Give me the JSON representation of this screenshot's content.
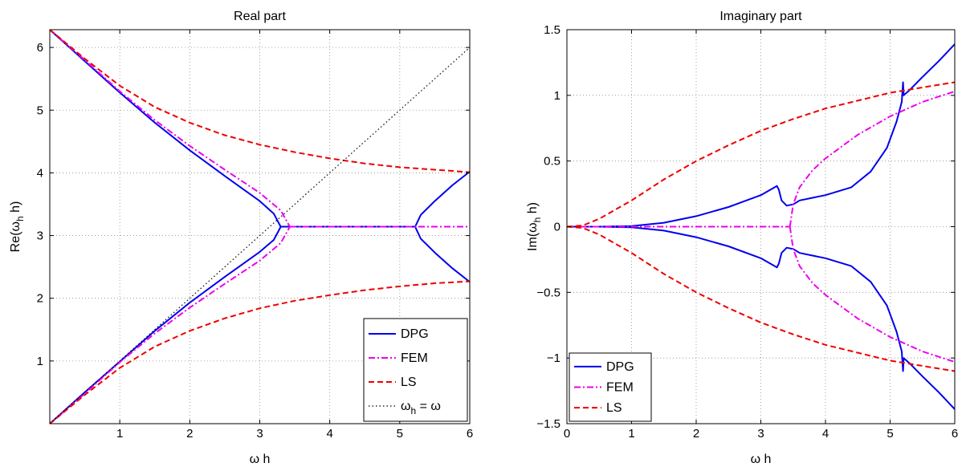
{
  "chart_data": [
    {
      "type": "line",
      "title": "Real part",
      "xlabel": "ω h",
      "ylabel": "Re(ω_h h)",
      "xlim": [
        0,
        6
      ],
      "ylim": [
        0,
        6.2832
      ],
      "xticks": [
        1,
        2,
        3,
        4,
        5,
        6
      ],
      "xtick_labels": [
        "1",
        "2",
        "3",
        "4",
        "5",
        "6"
      ],
      "yticks": [
        1,
        2,
        3,
        4,
        5,
        6
      ],
      "ytick_labels": [
        "1",
        "2",
        "3",
        "4",
        "5",
        "6"
      ],
      "grid": true,
      "legend_position": "bottom-right",
      "series": [
        {
          "name": "DPG",
          "color": "#0000ee",
          "style": "solid",
          "segments": [
            [
              [
                0,
                6.2832
              ],
              [
                0.5,
                5.78
              ],
              [
                1,
                5.28
              ],
              [
                1.5,
                4.8
              ],
              [
                2,
                4.36
              ],
              [
                2.5,
                3.95
              ],
              [
                3,
                3.55
              ],
              [
                3.2,
                3.35
              ],
              [
                3.3,
                3.14
              ]
            ],
            [
              [
                0,
                0
              ],
              [
                0.5,
                0.5
              ],
              [
                1,
                0.99
              ],
              [
                1.5,
                1.48
              ],
              [
                2,
                1.93
              ],
              [
                2.5,
                2.34
              ],
              [
                3,
                2.74
              ],
              [
                3.2,
                2.93
              ],
              [
                3.3,
                3.14
              ]
            ],
            [
              [
                3.3,
                3.1416
              ],
              [
                5.22,
                3.1416
              ]
            ],
            [
              [
                5.22,
                3.14
              ],
              [
                5.3,
                3.33
              ],
              [
                5.5,
                3.55
              ],
              [
                5.75,
                3.8
              ],
              [
                6,
                4.02
              ]
            ],
            [
              [
                5.22,
                3.14
              ],
              [
                5.3,
                2.95
              ],
              [
                5.5,
                2.73
              ],
              [
                5.75,
                2.48
              ],
              [
                6,
                2.26
              ]
            ]
          ]
        },
        {
          "name": "FEM",
          "color": "#ee00ee",
          "style": "dashdot",
          "segments": [
            [
              [
                0,
                6.2832
              ],
              [
                0.5,
                5.8
              ],
              [
                1,
                5.3
              ],
              [
                1.5,
                4.84
              ],
              [
                2,
                4.43
              ],
              [
                2.5,
                4.05
              ],
              [
                3,
                3.68
              ],
              [
                3.3,
                3.4
              ],
              [
                3.43,
                3.14
              ]
            ],
            [
              [
                0,
                0
              ],
              [
                0.5,
                0.48
              ],
              [
                1,
                0.98
              ],
              [
                1.5,
                1.44
              ],
              [
                2,
                1.85
              ],
              [
                2.5,
                2.23
              ],
              [
                3,
                2.6
              ],
              [
                3.3,
                2.88
              ],
              [
                3.43,
                3.14
              ]
            ],
            [
              [
                3.43,
                3.1416
              ],
              [
                6,
                3.1416
              ]
            ]
          ]
        },
        {
          "name": "LS",
          "color": "#ee0000",
          "style": "dashed",
          "segments": [
            [
              [
                0,
                6.2832
              ],
              [
                0.5,
                5.82
              ],
              [
                1,
                5.39
              ],
              [
                1.5,
                5.05
              ],
              [
                2,
                4.8
              ],
              [
                2.5,
                4.6
              ],
              [
                3,
                4.45
              ],
              [
                3.5,
                4.33
              ],
              [
                4,
                4.23
              ],
              [
                4.5,
                4.15
              ],
              [
                5,
                4.09
              ],
              [
                5.5,
                4.05
              ],
              [
                6,
                4.01
              ]
            ],
            [
              [
                0,
                0
              ],
              [
                0.5,
                0.46
              ],
              [
                1,
                0.89
              ],
              [
                1.5,
                1.23
              ],
              [
                2,
                1.48
              ],
              [
                2.5,
                1.68
              ],
              [
                3,
                1.84
              ],
              [
                3.5,
                1.96
              ],
              [
                4,
                2.05
              ],
              [
                4.5,
                2.13
              ],
              [
                5,
                2.19
              ],
              [
                5.5,
                2.24
              ],
              [
                6,
                2.27
              ]
            ]
          ]
        },
        {
          "name": "ω_h = ω",
          "color": "#000000",
          "style": "dotted",
          "segments": [
            [
              [
                0,
                0
              ],
              [
                6,
                6
              ]
            ]
          ]
        }
      ]
    },
    {
      "type": "line",
      "title": "Imaginary part",
      "xlabel": "ω h",
      "ylabel": "Im(ω_h h)",
      "xlim": [
        0,
        6
      ],
      "ylim": [
        -1.5,
        1.5
      ],
      "xticks": [
        0,
        1,
        2,
        3,
        4,
        5,
        6
      ],
      "xtick_labels": [
        "0",
        "1",
        "2",
        "3",
        "4",
        "5",
        "6"
      ],
      "yticks": [
        -1.5,
        -1,
        -0.5,
        0,
        0.5,
        1,
        1.5
      ],
      "ytick_labels": [
        "−1.5",
        "−1",
        "−0.5",
        "0",
        "0.5",
        "1",
        "1.5"
      ],
      "grid": true,
      "legend_position": "bottom-left",
      "series": [
        {
          "name": "DPG",
          "color": "#0000ee",
          "style": "solid",
          "segments": [
            [
              [
                0,
                0
              ],
              [
                0.5,
                0
              ],
              [
                1,
                0.005
              ],
              [
                1.5,
                0.03
              ],
              [
                2,
                0.08
              ],
              [
                2.5,
                0.15
              ],
              [
                3,
                0.24
              ],
              [
                3.25,
                0.31
              ],
              [
                3.28,
                0.28
              ],
              [
                3.32,
                0.2
              ],
              [
                3.4,
                0.16
              ],
              [
                3.5,
                0.17
              ],
              [
                3.6,
                0.2
              ],
              [
                4,
                0.24
              ],
              [
                4.4,
                0.3
              ],
              [
                4.7,
                0.42
              ],
              [
                4.95,
                0.6
              ],
              [
                5.1,
                0.8
              ],
              [
                5.18,
                0.95
              ],
              [
                5.2,
                1.1
              ],
              [
                5.21,
                1.0
              ],
              [
                5.3,
                1.04
              ],
              [
                5.5,
                1.14
              ],
              [
                5.75,
                1.26
              ],
              [
                6,
                1.39
              ]
            ],
            [
              [
                0,
                0
              ],
              [
                0.5,
                0
              ],
              [
                1,
                -0.005
              ],
              [
                1.5,
                -0.03
              ],
              [
                2,
                -0.08
              ],
              [
                2.5,
                -0.15
              ],
              [
                3,
                -0.24
              ],
              [
                3.25,
                -0.31
              ],
              [
                3.28,
                -0.28
              ],
              [
                3.32,
                -0.2
              ],
              [
                3.4,
                -0.16
              ],
              [
                3.5,
                -0.17
              ],
              [
                3.6,
                -0.2
              ],
              [
                4,
                -0.24
              ],
              [
                4.4,
                -0.3
              ],
              [
                4.7,
                -0.42
              ],
              [
                4.95,
                -0.6
              ],
              [
                5.1,
                -0.8
              ],
              [
                5.18,
                -0.95
              ],
              [
                5.2,
                -1.1
              ],
              [
                5.21,
                -1.0
              ],
              [
                5.3,
                -1.04
              ],
              [
                5.5,
                -1.14
              ],
              [
                5.75,
                -1.26
              ],
              [
                6,
                -1.39
              ]
            ]
          ]
        },
        {
          "name": "FEM",
          "color": "#ee00ee",
          "style": "dashdot",
          "segments": [
            [
              [
                0,
                0
              ],
              [
                3.45,
                0
              ]
            ],
            [
              [
                3.45,
                0
              ],
              [
                3.5,
                0.17
              ],
              [
                3.6,
                0.3
              ],
              [
                3.8,
                0.43
              ],
              [
                4,
                0.52
              ],
              [
                4.5,
                0.7
              ],
              [
                5,
                0.84
              ],
              [
                5.5,
                0.95
              ],
              [
                6,
                1.03
              ]
            ],
            [
              [
                3.45,
                0
              ],
              [
                3.5,
                -0.17
              ],
              [
                3.6,
                -0.3
              ],
              [
                3.8,
                -0.43
              ],
              [
                4,
                -0.52
              ],
              [
                4.5,
                -0.7
              ],
              [
                5,
                -0.84
              ],
              [
                5.5,
                -0.95
              ],
              [
                6,
                -1.03
              ]
            ]
          ]
        },
        {
          "name": "LS",
          "color": "#ee0000",
          "style": "dashed",
          "segments": [
            [
              [
                0,
                0
              ],
              [
                0.25,
                0.01
              ],
              [
                0.5,
                0.06
              ],
              [
                1,
                0.2
              ],
              [
                1.5,
                0.36
              ],
              [
                2,
                0.5
              ],
              [
                2.5,
                0.62
              ],
              [
                3,
                0.73
              ],
              [
                3.5,
                0.82
              ],
              [
                4,
                0.9
              ],
              [
                4.5,
                0.96
              ],
              [
                5,
                1.02
              ],
              [
                5.5,
                1.06
              ],
              [
                6,
                1.1
              ]
            ],
            [
              [
                0,
                0
              ],
              [
                0.25,
                -0.01
              ],
              [
                0.5,
                -0.06
              ],
              [
                1,
                -0.2
              ],
              [
                1.5,
                -0.36
              ],
              [
                2,
                -0.5
              ],
              [
                2.5,
                -0.62
              ],
              [
                3,
                -0.73
              ],
              [
                3.5,
                -0.82
              ],
              [
                4,
                -0.9
              ],
              [
                4.5,
                -0.96
              ],
              [
                5,
                -1.02
              ],
              [
                5.5,
                -1.06
              ],
              [
                6,
                -1.1
              ]
            ]
          ]
        }
      ]
    }
  ]
}
